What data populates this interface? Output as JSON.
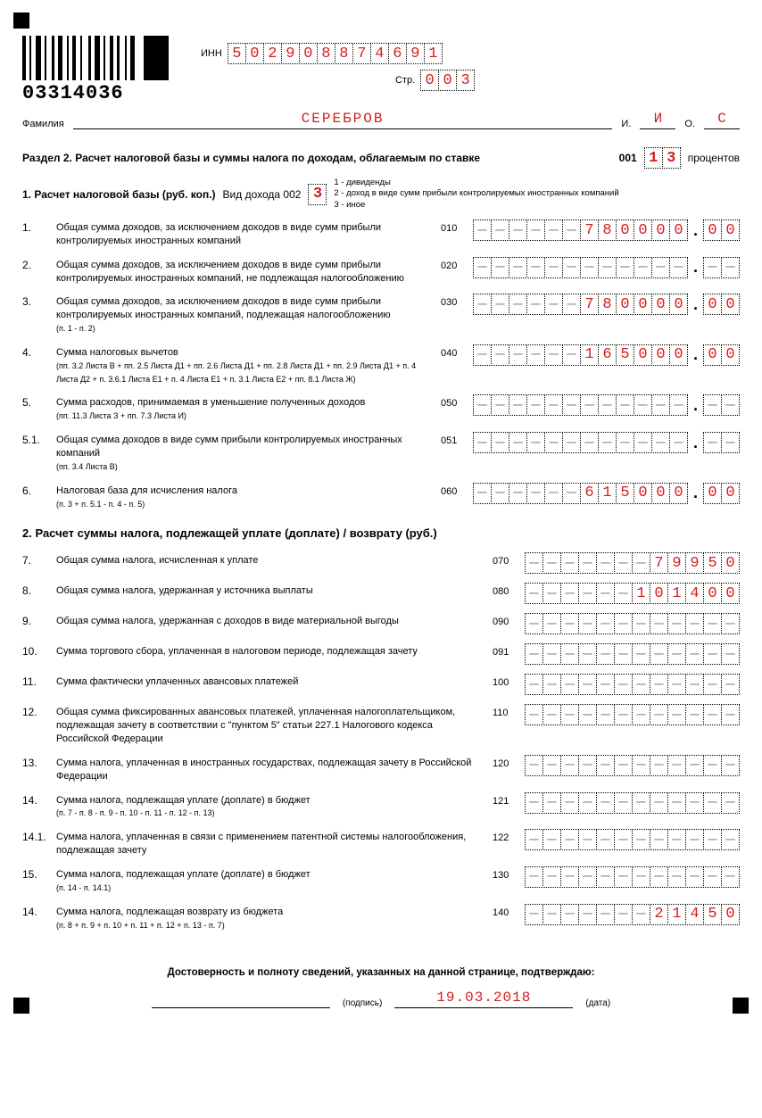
{
  "colors": {
    "value": "#d02020",
    "border": "#000000",
    "bg": "#ffffff"
  },
  "barcode_number": "03314036",
  "inn": {
    "label": "ИНН",
    "value": "502908874691"
  },
  "page": {
    "label": "Стр.",
    "value": "003"
  },
  "surname": {
    "label": "Фамилия",
    "value": "СЕРЕБРОВ",
    "i_label": "И.",
    "i": "И",
    "o_label": "О.",
    "o": "С"
  },
  "section_title": "Раздел 2. Расчет налоговой базы и суммы налога по доходам, облагаемым по ставке",
  "rate": {
    "code": "001",
    "value": "13",
    "unit": "процентов"
  },
  "sub1": {
    "title": "1. Расчет налоговой базы (руб. коп.)",
    "kind_label": "Вид дохода  002",
    "kind_value": "3",
    "legend": "1 - дивиденды\n2 - доход в виде сумм прибыли контролируемых иностранных компаний\n3 - иное"
  },
  "rows1": [
    {
      "n": "1.",
      "text": "Общая сумма доходов, за исключением доходов в виде сумм прибыли контролируемых иностранных компаний",
      "note": "",
      "code": "010",
      "rub": "------780000",
      "kop": "00"
    },
    {
      "n": "2.",
      "text": "Общая сумма доходов, за исключением доходов в виде сумм прибыли контролируемых иностранных компаний, не подлежащая налогообложению",
      "note": "",
      "code": "020",
      "rub": "------------",
      "kop": "--"
    },
    {
      "n": "3.",
      "text": "Общая сумма доходов, за исключением доходов в виде сумм прибыли контролируемых иностранных компаний, подлежащая налогообложению",
      "note": "(п. 1 - п. 2)",
      "code": "030",
      "rub": "------780000",
      "kop": "00"
    },
    {
      "n": "4.",
      "text": "Сумма налоговых вычетов",
      "note": "(пп. 3.2 Листа В + пп. 2.5 Листа Д1 + пп. 2.6 Листа Д1 + пп. 2.8 Листа Д1 + пп. 2.9 Листа Д1 + п. 4 Листа Д2 + п. 3.6.1 Листа Е1 + п. 4 Листа Е1 + п. 3.1 Листа Е2 + пп. 8.1 Листа Ж)",
      "code": "040",
      "rub": "------165000",
      "kop": "00"
    },
    {
      "n": "5.",
      "text": "Сумма расходов, принимаемая в уменьшение полученных доходов",
      "note": "(пп. 11.3 Листа З + пп. 7.3 Листа И)",
      "code": "050",
      "rub": "------------",
      "kop": "--"
    },
    {
      "n": "5.1.",
      "text": "Общая сумма доходов в виде сумм прибыли контролируемых иностранных компаний",
      "note": "(пп. 3.4 Листа В)",
      "code": "051",
      "rub": "------------",
      "kop": "--"
    },
    {
      "n": "6.",
      "text": "Налоговая база для исчисления налога",
      "note": "(п. 3 + п. 5.1 - п. 4 - п. 5)",
      "code": "060",
      "rub": "------615000",
      "kop": "00"
    }
  ],
  "sub2_title": "2. Расчет суммы налога, подлежащей уплате (доплате) / возврату (руб.)",
  "rows2": [
    {
      "n": "7.",
      "text": "Общая сумма налога, исчисленная к уплате",
      "note": "",
      "code": "070",
      "rub": "-------79950"
    },
    {
      "n": "8.",
      "text": "Общая сумма налога, удержанная у источника выплаты",
      "note": "",
      "code": "080",
      "rub": "------101400"
    },
    {
      "n": "9.",
      "text": "Общая сумма налога, удержанная с доходов в виде материальной выгоды",
      "note": "",
      "code": "090",
      "rub": "------------"
    },
    {
      "n": "10.",
      "text": "Сумма торгового сбора, уплаченная в налоговом периоде, подлежащая зачету",
      "note": "",
      "code": "091",
      "rub": "------------"
    },
    {
      "n": "11.",
      "text": "Сумма фактически уплаченных авансовых платежей",
      "note": "",
      "code": "100",
      "rub": "------------"
    },
    {
      "n": "12.",
      "text": "Общая сумма фиксированных авансовых платежей, уплаченная налогоплательщиком, подлежащая зачету в соответствии с \"пунктом 5\" статьи 227.1 Налогового кодекса Российской Федерации",
      "note": "",
      "code": "110",
      "rub": "------------"
    },
    {
      "n": "13.",
      "text": "Сумма налога, уплаченная в иностранных государствах, подлежащая зачету в Российской Федерации",
      "note": "",
      "code": "120",
      "rub": "------------"
    },
    {
      "n": "14.",
      "text": "Сумма налога, подлежащая уплате (доплате) в бюджет",
      "note": "(п. 7 - п. 8 - п. 9 - п. 10 - п. 11 - п. 12 - п. 13)",
      "code": "121",
      "rub": "------------"
    },
    {
      "n": "14.1.",
      "text": "Сумма налога, уплаченная в связи с применением патентной системы налогообложения, подлежащая зачету",
      "note": "",
      "code": "122",
      "rub": "------------"
    },
    {
      "n": "15.",
      "text": "Сумма налога, подлежащая уплате (доплате) в бюджет",
      "note": "(п. 14 - п. 14.1)",
      "code": "130",
      "rub": "------------"
    },
    {
      "n": "14.",
      "text": "Сумма налога, подлежащая возврату из бюджета",
      "note": "(п. 8 + п. 9 + п. 10 + п. 11 + п. 12 + п. 13 - п. 7)",
      "code": "140",
      "rub": "-------21450"
    }
  ],
  "footer": {
    "title": "Достоверность и полноту сведений, указанных на данной странице, подтверждаю:",
    "sig_label": "(подпись)",
    "date": "19.03.2018",
    "date_label": "(дата)"
  }
}
